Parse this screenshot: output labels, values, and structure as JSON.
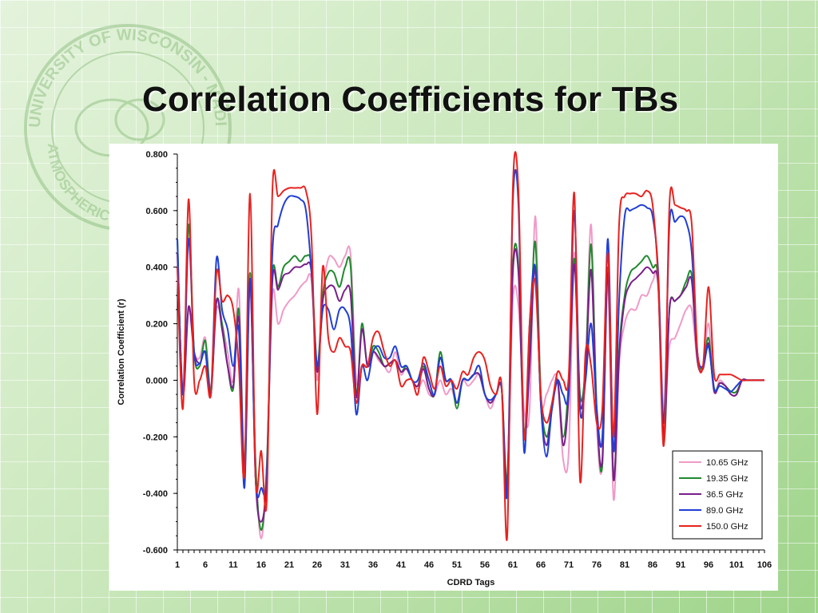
{
  "slide": {
    "title": "Correlation Coefficients for TBs",
    "watermark_text": "UNIVERSITY OF WISCONSIN - MADISON · ATMOSPHERIC AND OCEANIC SCIENCES"
  },
  "chart_data": {
    "type": "line",
    "title": "",
    "xlabel": "CDRD Tags",
    "ylabel": "Correlation Coefficient (r)",
    "xlim": [
      1,
      106
    ],
    "ylim": [
      -0.6,
      0.8
    ],
    "x_ticks": [
      "1",
      "6",
      "11",
      "16",
      "21",
      "26",
      "31",
      "36",
      "41",
      "46",
      "51",
      "56",
      "61",
      "66",
      "71",
      "76",
      "81",
      "86",
      "91",
      "96",
      "101",
      "106"
    ],
    "y_ticks": [
      "0.800",
      "0.600",
      "0.400",
      "0.200",
      "0.000",
      "-0.200",
      "-0.400",
      "-0.600"
    ],
    "grid": false,
    "legend_position": "bottom-right",
    "x": [
      1,
      2,
      3,
      4,
      5,
      6,
      7,
      8,
      9,
      10,
      11,
      12,
      13,
      14,
      15,
      16,
      17,
      18,
      19,
      20,
      21,
      22,
      23,
      24,
      25,
      26,
      27,
      28,
      29,
      30,
      31,
      32,
      33,
      34,
      35,
      36,
      37,
      38,
      39,
      40,
      41,
      42,
      43,
      44,
      45,
      46,
      47,
      48,
      49,
      50,
      51,
      52,
      53,
      54,
      55,
      56,
      57,
      58,
      59,
      60,
      61,
      62,
      63,
      64,
      65,
      66,
      67,
      68,
      69,
      70,
      71,
      72,
      73,
      74,
      75,
      76,
      77,
      78,
      79,
      80,
      81,
      82,
      83,
      84,
      85,
      86,
      87,
      88,
      89,
      90,
      91,
      92,
      93,
      94,
      95,
      96,
      97,
      98,
      99,
      100,
      101,
      102,
      103,
      104,
      105,
      106
    ],
    "series": [
      {
        "name": "10.65 GHz",
        "color": "#f09ac8",
        "values": [
          0.4,
          -0.05,
          0.25,
          0.1,
          0.08,
          0.15,
          -0.03,
          0.25,
          0.2,
          0.1,
          0.0,
          0.32,
          -0.3,
          0.3,
          -0.3,
          -0.56,
          -0.3,
          0.3,
          0.2,
          0.25,
          0.28,
          0.3,
          0.33,
          0.35,
          0.35,
          0.0,
          0.3,
          0.43,
          0.43,
          0.4,
          0.44,
          0.44,
          0.0,
          0.05,
          0.05,
          0.1,
          0.07,
          0.05,
          0.03,
          0.1,
          0.02,
          0.05,
          0.0,
          -0.03,
          0.0,
          -0.05,
          -0.05,
          0.0,
          -0.05,
          -0.03,
          -0.08,
          0.0,
          -0.02,
          0.0,
          0.02,
          -0.05,
          -0.1,
          -0.05,
          -0.03,
          -0.35,
          0.28,
          0.26,
          -0.1,
          -0.1,
          0.58,
          -0.05,
          -0.05,
          0.0,
          0.0,
          -0.28,
          -0.25,
          0.45,
          -0.05,
          0.05,
          0.55,
          -0.15,
          -0.3,
          0.35,
          -0.42,
          0.05,
          0.2,
          0.25,
          0.25,
          0.3,
          0.3,
          0.35,
          0.35,
          -0.12,
          0.12,
          0.15,
          0.2,
          0.25,
          0.25,
          0.07,
          0.05,
          0.2,
          -0.03,
          0.0,
          -0.02,
          -0.05,
          -0.05,
          0.0,
          0.0,
          0.0,
          0.0,
          0.0
        ]
      },
      {
        "name": "19.35 GHz",
        "color": "#1f8a2e",
        "values": [
          0.5,
          -0.05,
          0.55,
          0.1,
          0.05,
          0.14,
          -0.04,
          0.28,
          0.2,
          0.05,
          -0.03,
          0.25,
          -0.3,
          0.38,
          -0.3,
          -0.53,
          -0.3,
          0.37,
          0.33,
          0.4,
          0.42,
          0.44,
          0.42,
          0.44,
          0.4,
          0.05,
          0.3,
          0.38,
          0.38,
          0.33,
          0.4,
          0.4,
          -0.05,
          0.2,
          0.05,
          0.12,
          0.1,
          0.05,
          0.06,
          0.07,
          0.03,
          0.05,
          0.0,
          -0.02,
          0.05,
          -0.03,
          -0.05,
          0.1,
          0.0,
          0.0,
          -0.1,
          0.0,
          0.0,
          0.02,
          0.02,
          -0.05,
          -0.08,
          -0.05,
          -0.03,
          -0.35,
          0.4,
          0.4,
          -0.18,
          0.1,
          0.49,
          -0.05,
          -0.2,
          -0.1,
          0.0,
          -0.2,
          0.0,
          0.43,
          -0.05,
          0.05,
          0.48,
          -0.1,
          -0.3,
          0.4,
          -0.35,
          0.1,
          0.3,
          0.38,
          0.4,
          0.42,
          0.44,
          0.4,
          0.35,
          -0.22,
          0.25,
          0.28,
          0.3,
          0.35,
          0.37,
          0.08,
          0.05,
          0.15,
          -0.03,
          -0.01,
          -0.02,
          -0.04,
          -0.04,
          0.0,
          0.0,
          0.0,
          0.0,
          0.0
        ]
      },
      {
        "name": "36.5 GHz",
        "color": "#7a1f8a",
        "values": [
          0.45,
          -0.05,
          0.26,
          0.1,
          0.06,
          0.1,
          -0.05,
          0.28,
          0.18,
          0.05,
          -0.02,
          0.22,
          -0.32,
          0.35,
          -0.35,
          -0.5,
          -0.33,
          0.35,
          0.32,
          0.37,
          0.38,
          0.4,
          0.4,
          0.41,
          0.38,
          0.03,
          0.28,
          0.33,
          0.33,
          0.28,
          0.32,
          0.3,
          -0.06,
          0.18,
          0.05,
          0.1,
          0.08,
          0.05,
          0.06,
          0.07,
          0.03,
          0.04,
          0.0,
          -0.02,
          0.04,
          -0.03,
          -0.05,
          0.08,
          0.0,
          0.0,
          -0.08,
          0.0,
          0.0,
          0.02,
          0.02,
          -0.05,
          -0.08,
          -0.05,
          -0.03,
          -0.38,
          0.38,
          0.38,
          -0.2,
          0.05,
          0.4,
          -0.08,
          -0.23,
          -0.1,
          0.0,
          -0.23,
          -0.05,
          0.41,
          -0.08,
          0.03,
          0.39,
          -0.12,
          -0.28,
          0.38,
          -0.35,
          0.08,
          0.28,
          0.34,
          0.36,
          0.38,
          0.4,
          0.38,
          0.33,
          -0.2,
          0.25,
          0.28,
          0.3,
          0.33,
          0.35,
          0.07,
          0.04,
          0.13,
          -0.04,
          -0.01,
          -0.02,
          -0.05,
          -0.05,
          0.0,
          0.0,
          0.0,
          0.0,
          0.0
        ]
      },
      {
        "name": "89.0 GHz",
        "color": "#1f3fd6",
        "values": [
          0.5,
          -0.05,
          0.5,
          0.1,
          0.06,
          0.1,
          -0.05,
          0.43,
          0.25,
          0.18,
          0.05,
          0.18,
          -0.38,
          0.36,
          -0.35,
          -0.38,
          -0.33,
          0.45,
          0.55,
          0.62,
          0.65,
          0.65,
          0.64,
          0.6,
          0.38,
          0.05,
          0.25,
          0.25,
          0.18,
          0.25,
          0.25,
          0.18,
          -0.12,
          0.05,
          0.0,
          0.1,
          0.12,
          0.08,
          0.08,
          0.12,
          0.05,
          0.05,
          0.0,
          0.0,
          0.06,
          0.0,
          -0.05,
          0.08,
          0.0,
          0.0,
          -0.08,
          0.0,
          0.0,
          0.02,
          0.05,
          -0.05,
          -0.07,
          -0.05,
          -0.03,
          -0.4,
          0.63,
          0.62,
          -0.25,
          0.2,
          0.4,
          -0.08,
          -0.27,
          -0.1,
          0.0,
          -0.05,
          -0.03,
          0.6,
          -0.1,
          0.0,
          0.2,
          -0.1,
          -0.2,
          0.5,
          -0.25,
          0.28,
          0.58,
          0.6,
          0.61,
          0.62,
          0.61,
          0.58,
          0.38,
          -0.15,
          0.55,
          0.56,
          0.58,
          0.56,
          0.45,
          0.1,
          0.05,
          0.12,
          -0.03,
          -0.02,
          -0.03,
          -0.04,
          -0.02,
          0.0,
          0.0,
          0.0,
          0.0,
          0.0
        ]
      },
      {
        "name": "150.0 GHz",
        "color": "#e8221f",
        "values": [
          0.4,
          -0.1,
          0.64,
          0.0,
          0.0,
          0.05,
          -0.05,
          0.38,
          0.28,
          0.3,
          0.25,
          0.05,
          -0.33,
          0.66,
          -0.35,
          -0.25,
          -0.42,
          0.67,
          0.65,
          0.67,
          0.68,
          0.68,
          0.68,
          0.67,
          0.5,
          -0.12,
          0.4,
          0.15,
          0.1,
          0.15,
          0.12,
          0.1,
          -0.08,
          0.05,
          0.05,
          0.15,
          0.17,
          0.1,
          0.05,
          0.07,
          -0.02,
          0.0,
          0.0,
          -0.05,
          0.08,
          0.03,
          -0.03,
          0.05,
          -0.02,
          0.0,
          -0.03,
          0.03,
          0.02,
          0.08,
          0.1,
          0.07,
          -0.02,
          -0.05,
          -0.02,
          -0.55,
          0.68,
          0.67,
          -0.2,
          0.2,
          0.35,
          -0.05,
          -0.15,
          -0.08,
          0.03,
          0.0,
          0.02,
          0.66,
          -0.35,
          0.1,
          0.05,
          -0.15,
          -0.1,
          0.45,
          -0.2,
          0.55,
          0.65,
          0.66,
          0.66,
          0.65,
          0.67,
          0.62,
          0.35,
          -0.23,
          0.62,
          0.62,
          0.61,
          0.6,
          0.55,
          0.1,
          0.05,
          0.33,
          0.02,
          0.02,
          0.02,
          0.02,
          0.01,
          0.0,
          0.0,
          0.0,
          0.0,
          0.0
        ]
      }
    ]
  }
}
